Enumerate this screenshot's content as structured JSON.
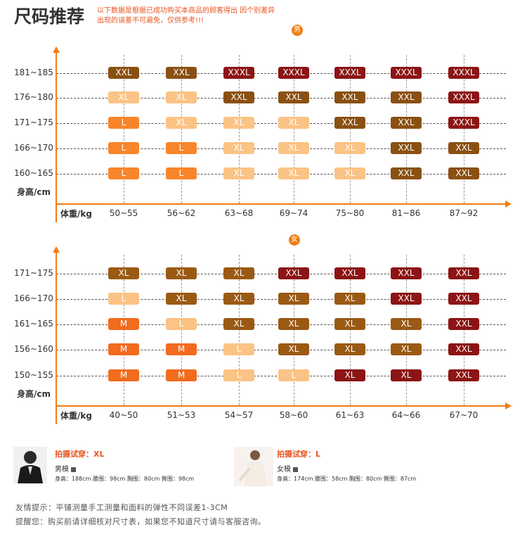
{
  "header": {
    "title": "尺码推荐",
    "subtitle": "以下数据是根据已成功购买本商品的顾客得出 因个别差异出现的误差不可避免，仅供参考!!!"
  },
  "colors": {
    "M": "#f26b1e",
    "L": "#f9852a",
    "XL_light": "#fbc385",
    "XL": "#9a5a14",
    "XXL": "#8a5012",
    "XXXL": "#8c1414",
    "axis": "#f07d14"
  },
  "men": {
    "badge": "男",
    "y_axis_label": "身高/cm",
    "x_axis_label": "体重/kg",
    "height_rows": [
      "181~185",
      "176~180",
      "171~175",
      "166~170",
      "160~165"
    ],
    "weight_cols": [
      "50~55",
      "56~62",
      "63~68",
      "69~74",
      "75~80",
      "81~86",
      "87~92"
    ],
    "grid": [
      [
        {
          "t": "XXL",
          "c": "XXL"
        },
        {
          "t": "XXL",
          "c": "XXL"
        },
        {
          "t": "XXXL",
          "c": "XXXL"
        },
        {
          "t": "XXXL",
          "c": "XXXL"
        },
        {
          "t": "XXXL",
          "c": "XXXL"
        },
        {
          "t": "XXXL",
          "c": "XXXL"
        },
        {
          "t": "XXXL",
          "c": "XXXL"
        }
      ],
      [
        {
          "t": "XL",
          "c": "XL_light"
        },
        {
          "t": "XL",
          "c": "XL_light"
        },
        {
          "t": "XXL",
          "c": "XXL"
        },
        {
          "t": "XXL",
          "c": "XXL"
        },
        {
          "t": "XXL",
          "c": "XXL"
        },
        {
          "t": "XXL",
          "c": "XXL"
        },
        {
          "t": "XXXL",
          "c": "XXXL"
        }
      ],
      [
        {
          "t": "L",
          "c": "L"
        },
        {
          "t": "XL",
          "c": "XL_light"
        },
        {
          "t": "XL",
          "c": "XL_light"
        },
        {
          "t": "XL",
          "c": "XL_light"
        },
        {
          "t": "XXL",
          "c": "XXL"
        },
        {
          "t": "XXL",
          "c": "XXL"
        },
        {
          "t": "XXXL",
          "c": "XXXL"
        }
      ],
      [
        {
          "t": "L",
          "c": "L"
        },
        {
          "t": "L",
          "c": "L"
        },
        {
          "t": "XL",
          "c": "XL_light"
        },
        {
          "t": "XL",
          "c": "XL_light"
        },
        {
          "t": "XL",
          "c": "XL_light"
        },
        {
          "t": "XXL",
          "c": "XXL"
        },
        {
          "t": "XXL",
          "c": "XXL"
        }
      ],
      [
        {
          "t": "L",
          "c": "L"
        },
        {
          "t": "L",
          "c": "L"
        },
        {
          "t": "XL",
          "c": "XL_light"
        },
        {
          "t": "XL",
          "c": "XL_light"
        },
        {
          "t": "XL",
          "c": "XL_light"
        },
        {
          "t": "XXL",
          "c": "XXL"
        },
        {
          "t": "XXL",
          "c": "XXL"
        }
      ]
    ]
  },
  "women": {
    "badge": "女",
    "y_axis_label": "身高/cm",
    "x_axis_label": "体重/kg",
    "height_rows": [
      "171~175",
      "166~170",
      "161~165",
      "156~160",
      "150~155"
    ],
    "weight_cols": [
      "40~50",
      "51~53",
      "54~57",
      "58~60",
      "61~63",
      "64~66",
      "67~70"
    ],
    "grid": [
      [
        {
          "t": "XL",
          "c": "XL"
        },
        {
          "t": "XL",
          "c": "XL"
        },
        {
          "t": "XL",
          "c": "XL"
        },
        {
          "t": "XXL",
          "c": "XXXL"
        },
        {
          "t": "XXL",
          "c": "XXXL"
        },
        {
          "t": "XXL",
          "c": "XXXL"
        },
        {
          "t": "XXL",
          "c": "XXXL"
        }
      ],
      [
        {
          "t": "L",
          "c": "XL_light"
        },
        {
          "t": "XL",
          "c": "XL"
        },
        {
          "t": "XL",
          "c": "XL"
        },
        {
          "t": "XL",
          "c": "XL"
        },
        {
          "t": "XL",
          "c": "XL"
        },
        {
          "t": "XXL",
          "c": "XXXL"
        },
        {
          "t": "XXL",
          "c": "XXXL"
        }
      ],
      [
        {
          "t": "M",
          "c": "M"
        },
        {
          "t": "L",
          "c": "XL_light"
        },
        {
          "t": "XL",
          "c": "XL"
        },
        {
          "t": "XL",
          "c": "XL"
        },
        {
          "t": "XL",
          "c": "XL"
        },
        {
          "t": "XL",
          "c": "XL"
        },
        {
          "t": "XXL",
          "c": "XXXL"
        }
      ],
      [
        {
          "t": "M",
          "c": "M"
        },
        {
          "t": "M",
          "c": "M"
        },
        {
          "t": "L",
          "c": "XL_light"
        },
        {
          "t": "XL",
          "c": "XL"
        },
        {
          "t": "XL",
          "c": "XL"
        },
        {
          "t": "XL",
          "c": "XL"
        },
        {
          "t": "XXL",
          "c": "XXXL"
        }
      ],
      [
        {
          "t": "M",
          "c": "M"
        },
        {
          "t": "M",
          "c": "M"
        },
        {
          "t": "L",
          "c": "XL_light"
        },
        {
          "t": "L",
          "c": "XL_light"
        },
        {
          "t": "XL",
          "c": "XXXL"
        },
        {
          "t": "XL",
          "c": "XXXL"
        },
        {
          "t": "XXL",
          "c": "XXXL"
        }
      ]
    ]
  },
  "models": {
    "male": {
      "title": "拍摄试穿：XL",
      "name": "男模",
      "measurements": "身高：188cm  腰围：98cm  胸围：80cm  臀围：98cm"
    },
    "female": {
      "title": "拍摄试穿：L",
      "name": "女模",
      "measurements": "身高：174cm  腰围：58cm  胸围：80cm  臀围：87cm"
    }
  },
  "footer": {
    "line1": "友情提示：平铺测量手工测量和面料的弹性不同误差1-3CM",
    "line2": "提醒您：购买前请详细核对尺寸表，如果您不知道尺寸请与客服咨询。"
  }
}
